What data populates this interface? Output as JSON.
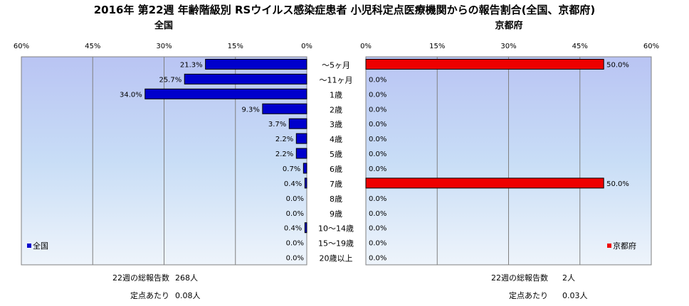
{
  "chart_data": {
    "type": "bar",
    "title": "2016年 第22週 年齢階級別 RSウイルス感染症患者 小児科定点医療機関からの報告割合(全国、京都府)",
    "categories": [
      "～5ヶ月",
      "～11ヶ月",
      "1歳",
      "2歳",
      "3歳",
      "4歳",
      "5歳",
      "6歳",
      "7歳",
      "8歳",
      "9歳",
      "10～14歳",
      "15～19歳",
      "20歳以上"
    ],
    "xlim": [
      0,
      60
    ],
    "ticks": [
      "60%",
      "45%",
      "30%",
      "15%",
      "0%"
    ],
    "ticks_right": [
      "0%",
      "15%",
      "30%",
      "45%",
      "60%"
    ],
    "grid": true,
    "series": [
      {
        "name": "全国",
        "panel_title": "全国",
        "color": "#0000CC",
        "values": [
          21.3,
          25.7,
          34.0,
          9.3,
          3.7,
          2.2,
          2.2,
          0.7,
          0.4,
          0.0,
          0.0,
          0.4,
          0.0,
          0.0
        ],
        "labels": [
          "21.3%",
          "25.7%",
          "34.0%",
          "9.3%",
          "3.7%",
          "2.2%",
          "2.2%",
          "0.7%",
          "0.4%",
          "0.0%",
          "0.0%",
          "0.4%",
          "0.0%",
          "0.0%"
        ],
        "legend_position": "bottom-left",
        "footer": {
          "total_label": "22週の総報告数",
          "total_value": "268人",
          "per_label": "定点あたり",
          "per_value": "0.08人"
        }
      },
      {
        "name": "京都府",
        "panel_title": "京都府",
        "color": "#EE0000",
        "values": [
          50.0,
          0.0,
          0.0,
          0.0,
          0.0,
          0.0,
          0.0,
          0.0,
          50.0,
          0.0,
          0.0,
          0.0,
          0.0,
          0.0
        ],
        "labels": [
          "50.0%",
          "0.0%",
          "0.0%",
          "0.0%",
          "0.0%",
          "0.0%",
          "0.0%",
          "0.0%",
          "50.0%",
          "0.0%",
          "0.0%",
          "0.0%",
          "0.0%",
          "0.0%"
        ],
        "legend_position": "bottom-right",
        "footer": {
          "total_label": "22週の総報告数",
          "total_value": "2人",
          "per_label": "定点あたり",
          "per_value": "0.03人"
        }
      }
    ]
  }
}
